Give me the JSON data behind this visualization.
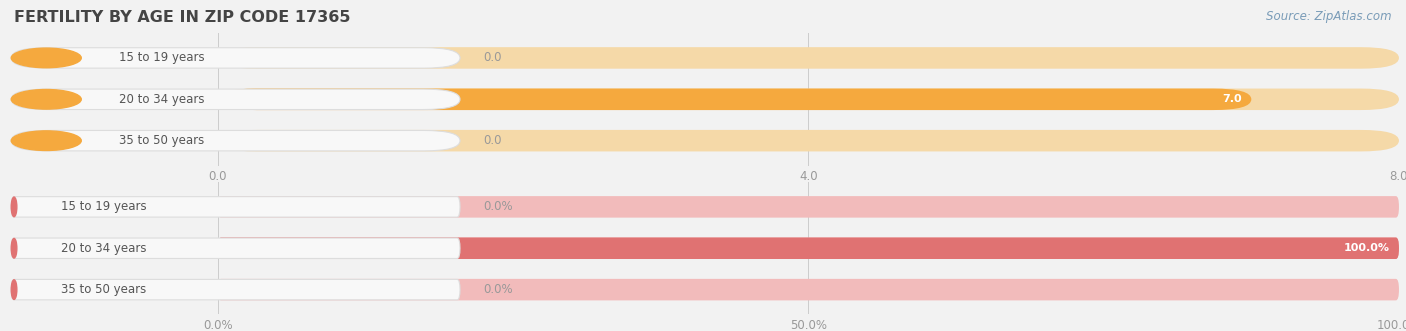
{
  "title": "FERTILITY BY AGE IN ZIP CODE 17365",
  "source": "Source: ZipAtlas.com",
  "background_color": "#f2f2f2",
  "top_chart": {
    "categories": [
      "15 to 19 years",
      "20 to 34 years",
      "35 to 50 years"
    ],
    "values": [
      0.0,
      7.0,
      0.0
    ],
    "xlim": [
      0,
      8.0
    ],
    "xticks": [
      0.0,
      4.0,
      8.0
    ],
    "xtick_labels": [
      "0.0",
      "4.0",
      "8.0"
    ],
    "bar_color": "#f5a93e",
    "bar_bg_color": "#f5d9a8",
    "label_bg_color": "#f8f8f8",
    "label_border_color": "#dddddd",
    "label_dot_color": "#f5a93e"
  },
  "bottom_chart": {
    "categories": [
      "15 to 19 years",
      "20 to 34 years",
      "35 to 50 years"
    ],
    "values": [
      0.0,
      100.0,
      0.0
    ],
    "xlim": [
      0,
      100.0
    ],
    "xticks": [
      0.0,
      50.0,
      100.0
    ],
    "xtick_labels": [
      "0.0%",
      "50.0%",
      "100.0%"
    ],
    "bar_color": "#e07272",
    "bar_bg_color": "#f2bbbb",
    "label_bg_color": "#f8f8f8",
    "label_border_color": "#dddddd",
    "label_dot_color": "#e07272"
  },
  "fig_width": 14.06,
  "fig_height": 3.31,
  "dpi": 100
}
